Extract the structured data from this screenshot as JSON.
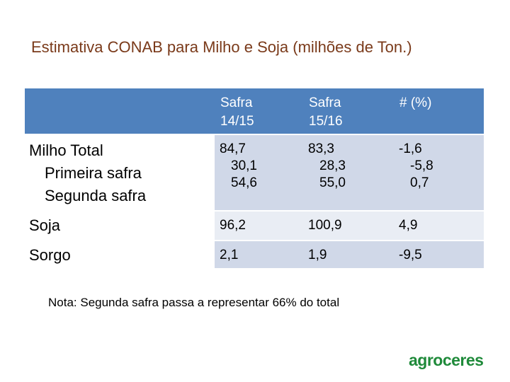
{
  "title": "Estimativa CONAB para Milho e Soja (milhões de Ton.)",
  "table": {
    "headers": [
      "",
      "Safra 14/15",
      "Safra 15/16",
      "# (%)"
    ],
    "header_lines": [
      [],
      [
        "Safra",
        "14/15"
      ],
      [
        "Safra",
        "15/16"
      ],
      [
        "# (%)"
      ]
    ],
    "rows": [
      {
        "labels": [
          "Milho Total",
          "Primeira safra",
          "Segunda safra"
        ],
        "safra_14_15": [
          "84,7",
          "30,1",
          "54,6"
        ],
        "safra_15_16": [
          "83,3",
          "28,3",
          "55,0"
        ],
        "change_pct": [
          "-1,6",
          "-5,8",
          "0,7"
        ]
      },
      {
        "labels": [
          "Soja"
        ],
        "safra_14_15": [
          "96,2"
        ],
        "safra_15_16": [
          "100,9"
        ],
        "change_pct": [
          "4,9"
        ]
      },
      {
        "labels": [
          "Sorgo"
        ],
        "safra_14_15": [
          "2,1"
        ],
        "safra_15_16": [
          "1,9"
        ],
        "change_pct": [
          "-9,5"
        ]
      }
    ]
  },
  "note": "Nota: Segunda safra passa a representar 66% do total",
  "logo_text": "agroceres",
  "colors": {
    "header_bg": "#4f81bd",
    "row_shade_dark": "#d0d8e8",
    "row_shade_light": "#e9edf4",
    "title_color": "#7a3a1a",
    "logo_color": "#1f8a3a"
  }
}
